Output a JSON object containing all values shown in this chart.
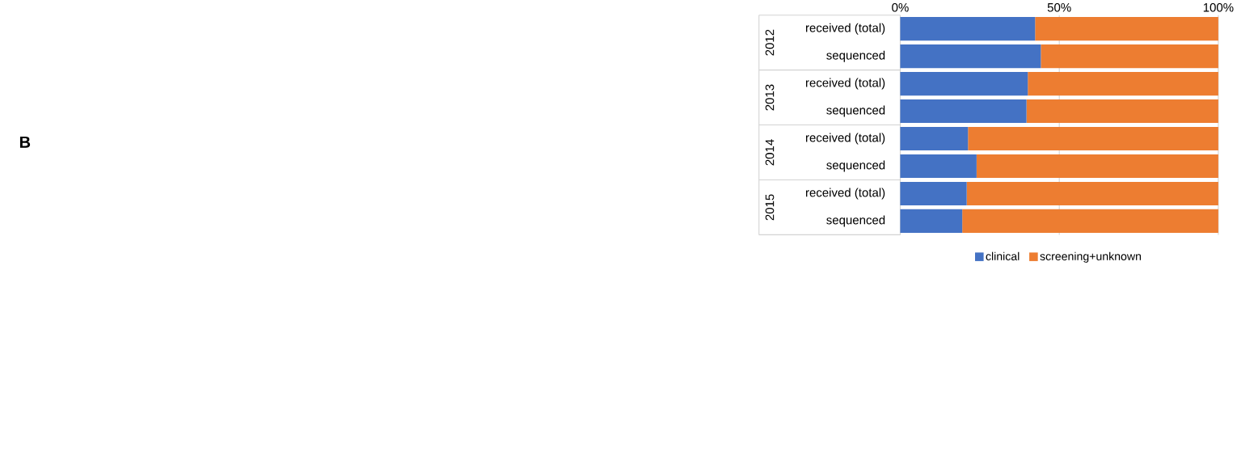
{
  "chart_data": {
    "type": "bar",
    "orientation": "horizontal",
    "stacked": true,
    "title": "B",
    "categories": [
      "received (total)",
      "sequenced",
      "received (total)",
      "sequenced",
      "received (total)",
      "sequenced",
      "received (total)",
      "sequenced"
    ],
    "series": [
      {
        "name": "clinical",
        "color": "#4472c4",
        "values": [
          42.4,
          44.2,
          40.1,
          39.7,
          21.3,
          24.0,
          20.9,
          19.5
        ]
      },
      {
        "name": "screening+unknown",
        "color": "#ed7d31",
        "values": [
          57.6,
          55.8,
          59.9,
          60.3,
          78.7,
          76.0,
          79.1,
          80.5
        ]
      }
    ],
    "xlim": [
      0,
      100
    ],
    "xticks": [
      {
        "value": 0,
        "label": "0%"
      },
      {
        "value": 50,
        "label": "50%"
      },
      {
        "value": 100,
        "label": "100%"
      }
    ],
    "annotations": [
      "2012",
      "2013",
      "2014",
      "2015"
    ],
    "grid": "x",
    "legend": "bottom"
  }
}
